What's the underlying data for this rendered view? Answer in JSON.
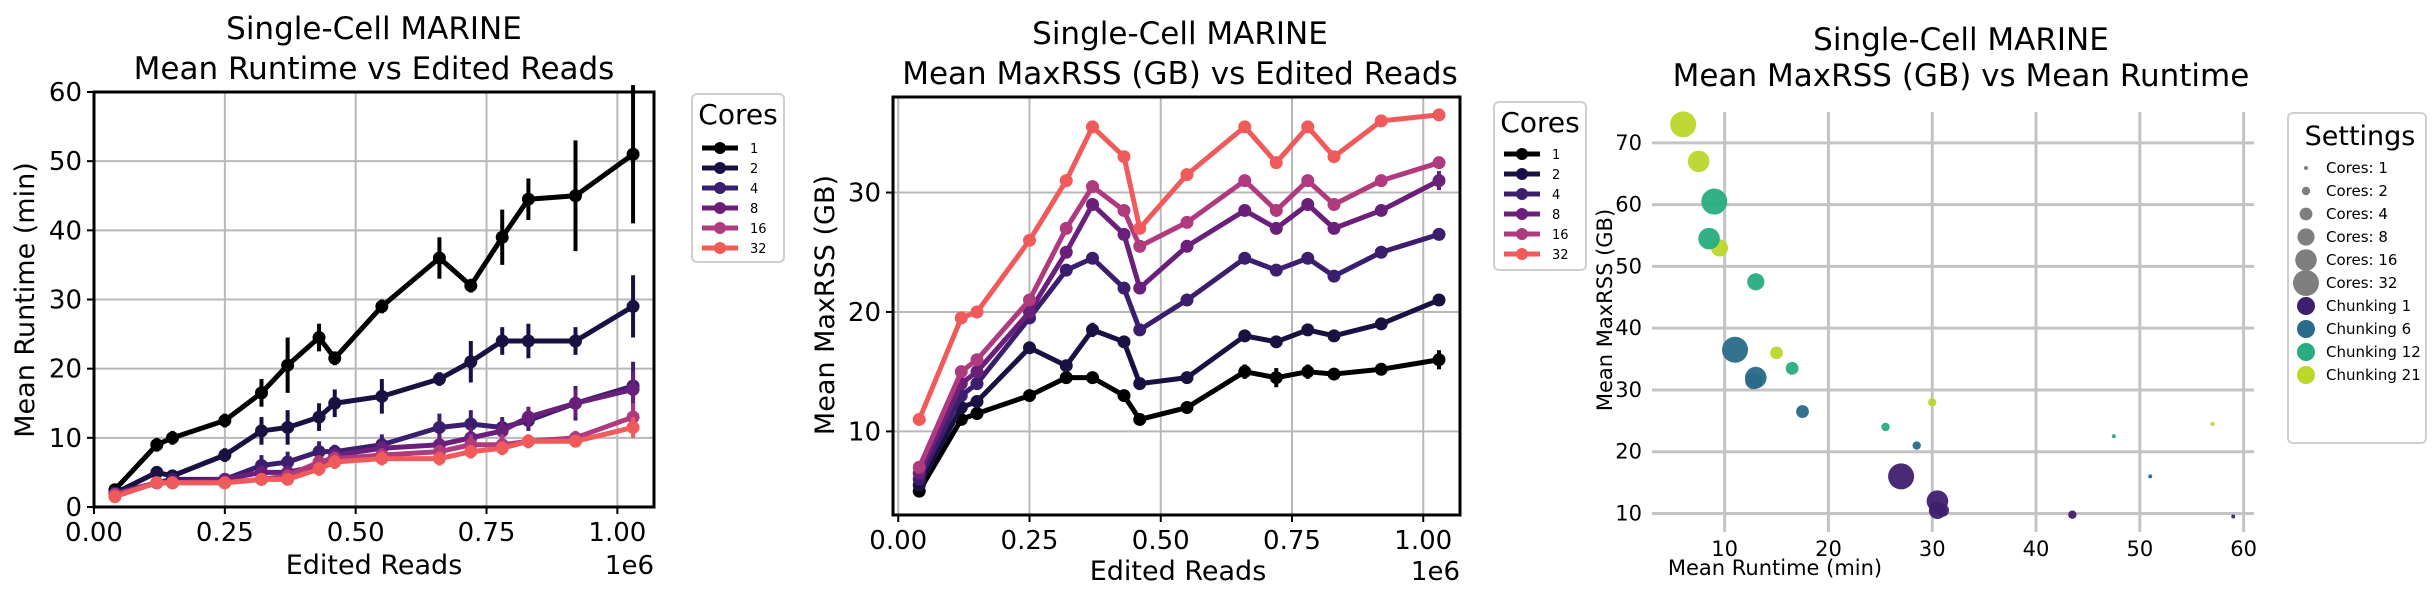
{
  "charts": [
    {
      "title_line1": "Single-Cell MARINE",
      "title_line2": "Mean Runtime vs Edited Reads",
      "xlabel": "Edited Reads",
      "ylabel": "Mean Runtime (min)",
      "x_offset_label": "1e6",
      "xticks": [
        "0.00",
        "0.25",
        "0.50",
        "0.75",
        "1.00"
      ],
      "yticks": [
        "0",
        "10",
        "20",
        "30",
        "40",
        "50",
        "60"
      ],
      "legend_title": "Cores"
    },
    {
      "title_line1": "Single-Cell MARINE",
      "title_line2": "Mean MaxRSS (GB) vs Edited Reads",
      "xlabel": "Edited Reads",
      "ylabel": "Mean MaxRSS (GB)",
      "x_offset_label": "1e6",
      "xticks": [
        "0.00",
        "0.25",
        "0.50",
        "0.75",
        "1.00"
      ],
      "yticks": [
        "10",
        "20",
        "30"
      ],
      "legend_title": "Cores"
    },
    {
      "title_line1": "Single-Cell MARINE",
      "title_line2": "Mean MaxRSS (GB) vs Mean Runtime",
      "xlabel": "Mean Runtime (min)",
      "ylabel": "Mean MaxRSS (GB)",
      "xticks": [
        "10",
        "20",
        "30",
        "40",
        "50",
        "60"
      ],
      "yticks": [
        "10",
        "20",
        "30",
        "40",
        "50",
        "60",
        "70"
      ],
      "legend_title": "Settings"
    }
  ],
  "chart_data": [
    {
      "type": "line",
      "title": "Single-Cell MARINE\nMean Runtime vs Edited Reads",
      "xlabel": "Edited Reads",
      "ylabel": "Mean Runtime (min)",
      "x_scale_note": "1e6",
      "xlim": [
        0,
        1.07
      ],
      "ylim": [
        0,
        60
      ],
      "grid": true,
      "legend_title": "Cores",
      "legend_position": "outside-right",
      "x": [
        0.04,
        0.12,
        0.15,
        0.25,
        0.32,
        0.37,
        0.43,
        0.46,
        0.55,
        0.66,
        0.72,
        0.78,
        0.83,
        0.92,
        1.03
      ],
      "series": [
        {
          "name": "1",
          "color": "#000000",
          "values": [
            2.5,
            9,
            10,
            12.5,
            16.5,
            20.5,
            24.5,
            21.5,
            29,
            36,
            32,
            39,
            44.5,
            45,
            51
          ],
          "errors": [
            0.5,
            1,
            1,
            1,
            2,
            4,
            2,
            1,
            1,
            3,
            1,
            4,
            3,
            8,
            10
          ]
        },
        {
          "name": "2",
          "color": "#1a1042",
          "values": [
            2,
            5,
            4.5,
            7.5,
            11,
            11.5,
            13,
            15,
            16,
            18.5,
            21,
            24,
            24,
            24,
            29
          ],
          "errors": [
            0.3,
            0.5,
            0.5,
            1,
            2,
            2.5,
            2,
            2,
            2.5,
            1,
            3,
            2,
            2.5,
            2,
            4.5
          ]
        },
        {
          "name": "4",
          "color": "#3b1f6e",
          "values": [
            2,
            3.5,
            4,
            4,
            6,
            6.5,
            8,
            8,
            9,
            11.5,
            12,
            11.5,
            12.5,
            15,
            17.5
          ],
          "errors": [
            0.3,
            0.4,
            0.4,
            0.6,
            1.5,
            1.5,
            1.5,
            1,
            1.5,
            2,
            2,
            1.5,
            1.5,
            2.5,
            3.5
          ]
        },
        {
          "name": "8",
          "color": "#6a1f7a",
          "values": [
            1.8,
            3.5,
            3.5,
            4,
            5,
            5,
            6,
            7.5,
            8.5,
            9,
            10,
            11,
            13,
            15,
            17
          ],
          "errors": [
            0.3,
            0.4,
            0.4,
            0.5,
            1,
            1,
            1,
            1,
            1,
            1.5,
            1.5,
            1.5,
            1.5,
            2,
            2.5
          ]
        },
        {
          "name": "16",
          "color": "#b03a7e",
          "values": [
            1.8,
            3.5,
            3.5,
            3.5,
            4,
            4.5,
            6.5,
            7,
            7.5,
            8,
            9,
            9,
            9.5,
            10,
            13
          ],
          "errors": [
            0.3,
            0.4,
            0.4,
            0.5,
            0.8,
            0.8,
            1,
            1,
            1,
            1,
            1.5,
            1.5,
            1,
            1,
            2
          ]
        },
        {
          "name": "32",
          "color": "#f05a5a",
          "values": [
            1.5,
            3.5,
            3.5,
            3.5,
            4,
            4,
            5.5,
            6.5,
            7,
            7,
            8,
            8.5,
            9.5,
            9.5,
            11.5
          ],
          "errors": [
            0.3,
            0.4,
            0.4,
            0.5,
            0.5,
            0.5,
            1,
            1,
            1,
            1,
            1,
            1,
            1,
            0.8,
            1.5
          ]
        }
      ]
    },
    {
      "type": "line",
      "title": "Single-Cell MARINE\nMean MaxRSS (GB) vs Edited Reads",
      "xlabel": "Edited Reads",
      "ylabel": "Mean MaxRSS (GB)",
      "x_scale_note": "1e6",
      "xlim": [
        -0.01,
        1.07
      ],
      "ylim": [
        3,
        38
      ],
      "grid": true,
      "legend_title": "Cores",
      "legend_position": "outside-right",
      "x": [
        0.04,
        0.12,
        0.15,
        0.25,
        0.32,
        0.37,
        0.43,
        0.46,
        0.55,
        0.66,
        0.72,
        0.78,
        0.83,
        0.92,
        1.03
      ],
      "series": [
        {
          "name": "1",
          "color": "#000000",
          "values": [
            5,
            11,
            11.5,
            13,
            14.5,
            14.5,
            13,
            11,
            12,
            15,
            14.5,
            15,
            14.8,
            15.2,
            16
          ],
          "errors": [
            0.3,
            0.5,
            0.5,
            0.5,
            0.5,
            0.5,
            0.5,
            0.5,
            0.5,
            0.6,
            0.8,
            0.6,
            0.5,
            0.5,
            0.8
          ]
        },
        {
          "name": "2",
          "color": "#1a1042",
          "values": [
            5.5,
            12,
            12.5,
            17,
            15.5,
            18.5,
            17.5,
            14,
            14.5,
            18,
            17.5,
            18.5,
            18,
            19,
            21
          ],
          "errors": [
            0.3,
            0.5,
            0.5,
            0.5,
            0.5,
            0.6,
            0.5,
            0.5,
            0.5,
            0.5,
            0.5,
            0.5,
            0.5,
            0.5,
            0.5
          ]
        },
        {
          "name": "4",
          "color": "#3b1f6e",
          "values": [
            6,
            13,
            14,
            19.5,
            23.5,
            24.5,
            22,
            18.5,
            21,
            24.5,
            23.5,
            24.5,
            23,
            25,
            26.5
          ],
          "errors": [
            0.3,
            0.5,
            0.5,
            0.5,
            0.5,
            0.5,
            0.5,
            0.5,
            0.5,
            0.5,
            0.5,
            0.5,
            0.5,
            0.5,
            0.5
          ]
        },
        {
          "name": "8",
          "color": "#6a1f7a",
          "values": [
            6.5,
            14,
            15,
            20,
            25,
            29,
            26.5,
            22,
            25.5,
            28.5,
            27,
            29,
            27,
            28.5,
            31
          ],
          "errors": [
            0.3,
            0.5,
            0.5,
            0.5,
            0.5,
            0.5,
            0.5,
            0.5,
            0.5,
            0.5,
            0.5,
            0.5,
            0.5,
            0.5,
            0.8
          ]
        },
        {
          "name": "16",
          "color": "#b03a7e",
          "values": [
            7,
            15,
            16,
            21,
            27,
            30.5,
            28.5,
            25.5,
            27.5,
            31,
            28.5,
            31,
            29,
            31,
            32.5
          ],
          "errors": [
            0.3,
            0.5,
            0.5,
            0.5,
            0.5,
            0.5,
            0.5,
            0.5,
            0.5,
            0.5,
            0.5,
            0.5,
            0.5,
            0.5,
            0.5
          ]
        },
        {
          "name": "32",
          "color": "#f05a5a",
          "values": [
            11,
            19.5,
            20,
            26,
            31,
            35.5,
            33,
            27,
            31.5,
            35.5,
            32.5,
            35.5,
            33,
            36,
            36.5
          ],
          "errors": [
            0.3,
            0.5,
            0.5,
            0.5,
            0.5,
            0.5,
            0.5,
            0.5,
            0.5,
            0.5,
            0.5,
            0.5,
            0.5,
            0.5,
            0.5
          ]
        }
      ]
    },
    {
      "type": "scatter",
      "title": "Single-Cell MARINE\nMean MaxRSS (GB) vs Mean Runtime",
      "xlabel": "Mean Runtime (min)",
      "ylabel": "Mean MaxRSS (GB)",
      "xlim": [
        3,
        61
      ],
      "ylim": [
        7,
        75
      ],
      "grid": true,
      "legend_title": "Settings",
      "legend_position": "outside-right",
      "size_legend": [
        {
          "label": "Cores: 1",
          "cores": 1
        },
        {
          "label": "Cores: 2",
          "cores": 2
        },
        {
          "label": "Cores: 4",
          "cores": 4
        },
        {
          "label": "Cores: 8",
          "cores": 8
        },
        {
          "label": "Cores: 16",
          "cores": 16
        },
        {
          "label": "Cores: 32",
          "cores": 32
        }
      ],
      "color_legend": [
        {
          "label": "Chunking 1",
          "color": "#3e1f6e"
        },
        {
          "label": "Chunking 6",
          "color": "#2a6a8a"
        },
        {
          "label": "Chunking 12",
          "color": "#27ad7f"
        },
        {
          "label": "Chunking 21",
          "color": "#bdd62a"
        }
      ],
      "points": [
        {
          "x": 6,
          "y": 73,
          "cores": 32,
          "chunking": 21
        },
        {
          "x": 7.5,
          "y": 67,
          "cores": 16,
          "chunking": 21
        },
        {
          "x": 9.5,
          "y": 53,
          "cores": 8,
          "chunking": 21
        },
        {
          "x": 15,
          "y": 36,
          "cores": 4,
          "chunking": 21
        },
        {
          "x": 30,
          "y": 28,
          "cores": 2,
          "chunking": 21
        },
        {
          "x": 57,
          "y": 24.5,
          "cores": 1,
          "chunking": 21
        },
        {
          "x": 9,
          "y": 60.5,
          "cores": 32,
          "chunking": 12
        },
        {
          "x": 8.5,
          "y": 54.5,
          "cores": 16,
          "chunking": 12
        },
        {
          "x": 13,
          "y": 47.5,
          "cores": 8,
          "chunking": 12
        },
        {
          "x": 16.5,
          "y": 33.5,
          "cores": 4,
          "chunking": 12
        },
        {
          "x": 25.5,
          "y": 24,
          "cores": 2,
          "chunking": 12
        },
        {
          "x": 47.5,
          "y": 22.5,
          "cores": 1,
          "chunking": 12
        },
        {
          "x": 11,
          "y": 36.5,
          "cores": 32,
          "chunking": 6
        },
        {
          "x": 13,
          "y": 32,
          "cores": 16,
          "chunking": 6
        },
        {
          "x": 12.8,
          "y": 31.5,
          "cores": 8,
          "chunking": 6
        },
        {
          "x": 17.5,
          "y": 26.5,
          "cores": 4,
          "chunking": 6
        },
        {
          "x": 28.5,
          "y": 21,
          "cores": 2,
          "chunking": 6
        },
        {
          "x": 51,
          "y": 16,
          "cores": 1,
          "chunking": 6
        },
        {
          "x": 27,
          "y": 16,
          "cores": 32,
          "chunking": 1
        },
        {
          "x": 30.5,
          "y": 12,
          "cores": 16,
          "chunking": 1
        },
        {
          "x": 30.5,
          "y": 10.5,
          "cores": 8,
          "chunking": 1
        },
        {
          "x": 31,
          "y": 10.5,
          "cores": 4,
          "chunking": 1
        },
        {
          "x": 43.5,
          "y": 9.8,
          "cores": 2,
          "chunking": 1
        },
        {
          "x": 59,
          "y": 9.5,
          "cores": 1,
          "chunking": 1
        }
      ]
    }
  ]
}
